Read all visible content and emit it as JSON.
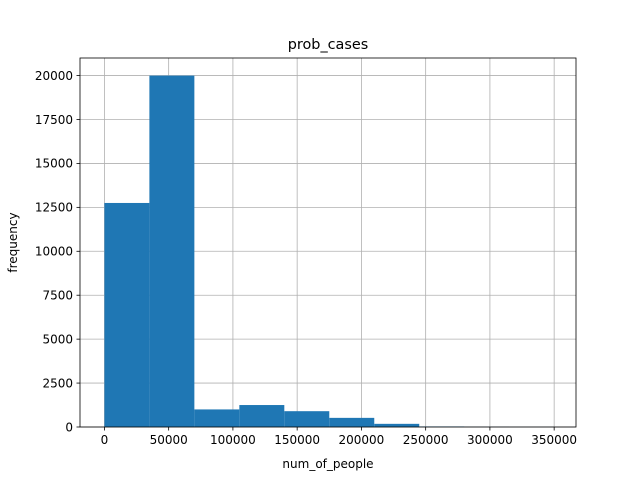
{
  "chart_data": {
    "type": "bar",
    "title": "prob_cases",
    "xlabel": "num_of_people",
    "ylabel": "frequency",
    "grid": true,
    "bar_color": "#1f77b4",
    "xlim": [
      -19000,
      367000
    ],
    "ylim": [
      0,
      21000
    ],
    "x_ticks": [
      0,
      50000,
      100000,
      150000,
      200000,
      250000,
      300000,
      350000
    ],
    "y_ticks": [
      0,
      2500,
      5000,
      7500,
      10000,
      12500,
      15000,
      17500,
      20000
    ],
    "x_tick_labels": [
      "0",
      "50000",
      "100000",
      "150000",
      "200000",
      "250000",
      "300000",
      "350000"
    ],
    "y_tick_labels": [
      "0",
      "2500",
      "5000",
      "7500",
      "10000",
      "12500",
      "15000",
      "17500",
      "20000"
    ],
    "bins": [
      {
        "x0": 0,
        "x1": 35000,
        "value": 12750
      },
      {
        "x0": 35000,
        "x1": 70000,
        "value": 20000
      },
      {
        "x0": 70000,
        "x1": 105000,
        "value": 1000
      },
      {
        "x0": 105000,
        "x1": 140000,
        "value": 1250
      },
      {
        "x0": 140000,
        "x1": 175000,
        "value": 900
      },
      {
        "x0": 175000,
        "x1": 210000,
        "value": 520
      },
      {
        "x0": 210000,
        "x1": 245000,
        "value": 180
      },
      {
        "x0": 245000,
        "x1": 280000,
        "value": 30
      },
      {
        "x0": 280000,
        "x1": 315000,
        "value": 10
      },
      {
        "x0": 315000,
        "x1": 350000,
        "value": 5
      }
    ]
  }
}
